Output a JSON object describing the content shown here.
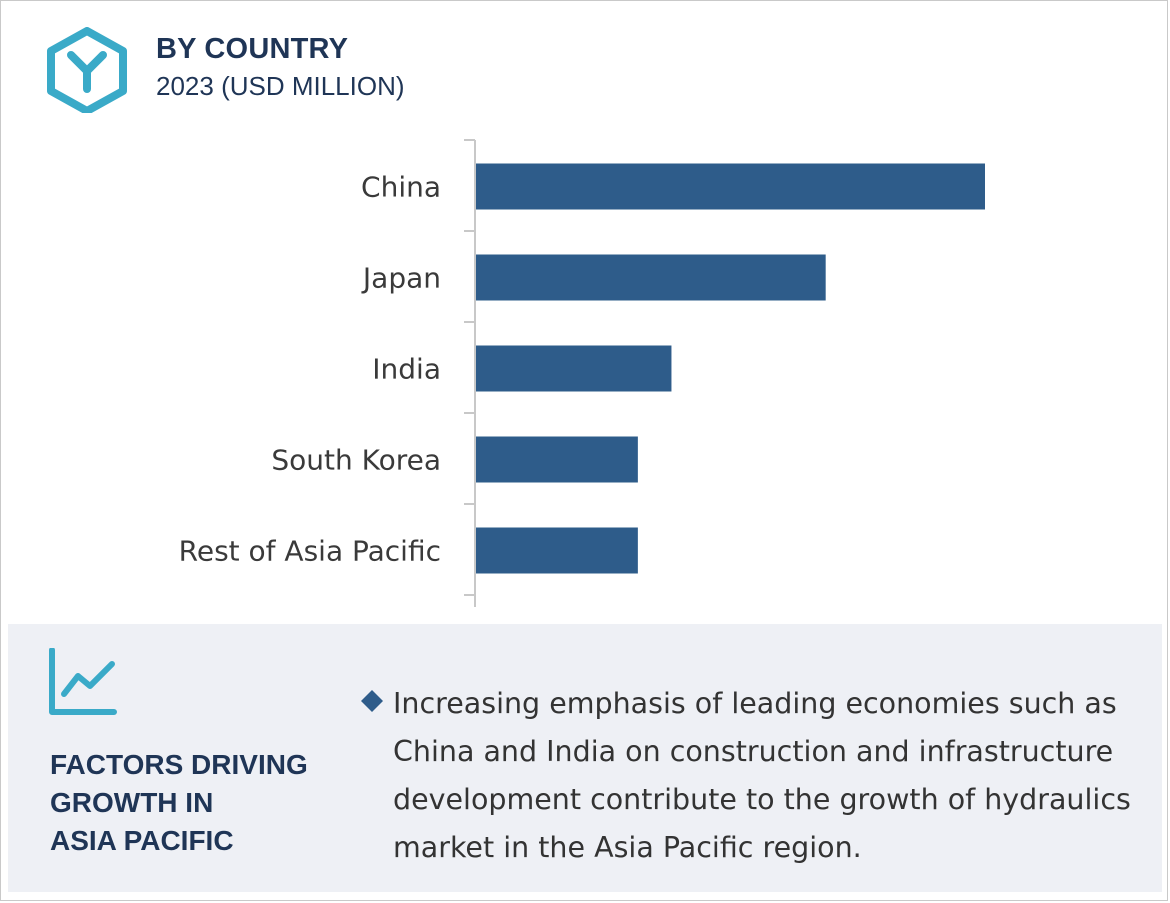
{
  "header": {
    "title": "BY COUNTRY",
    "subtitle": "2023 (USD MILLION)",
    "icon": "hexagon-y-logo-icon"
  },
  "colors": {
    "bar": "#2e5c8a",
    "accent": "#3aaac8",
    "heading": "#1f3556",
    "panel_bg": "#eef0f5"
  },
  "chart_data": {
    "type": "bar",
    "orientation": "horizontal",
    "categories": [
      "China",
      "Japan",
      "India",
      "South Korea",
      "Rest of Asia Pacific"
    ],
    "values": [
      100,
      68.7,
      38.4,
      31.8,
      31.8
    ],
    "title": "",
    "xlabel": "",
    "ylabel": "",
    "xlim": [
      0,
      100
    ],
    "grid": false,
    "value_axis_shown": false
  },
  "factors": {
    "icon": "trend-line-chart-icon",
    "title_lines": [
      "FACTORS DRIVING",
      "GROWTH IN",
      "ASIA PACIFIC"
    ],
    "bullet_icon": "diamond-bullet-icon",
    "bullet_text": "Increasing emphasis of leading economies such as China and India on construction and infrastructure development contribute to the growth of hydraulics market in the Asia Pacific region."
  }
}
